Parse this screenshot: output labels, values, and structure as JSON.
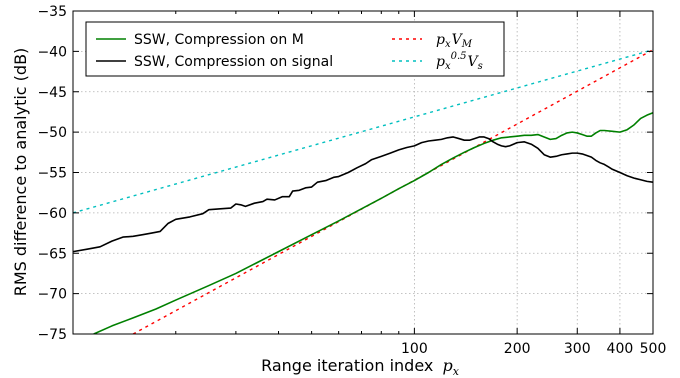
{
  "chart_data": {
    "type": "line",
    "xlabel": "Range iteration index",
    "xlabel_math": "p",
    "xlabel_math_sub": "x",
    "ylabel": "RMS difference to analytic (dB)",
    "xscale": "log",
    "xlim": [
      10,
      500
    ],
    "ylim": [
      -75,
      -35
    ],
    "grid": true,
    "legend_position": "top",
    "x_tick_labels": [
      "100",
      "200",
      "300",
      "400",
      "500"
    ],
    "x_ticks": [
      100,
      200,
      300,
      400,
      500
    ],
    "y_ticks": [
      -35,
      -40,
      -45,
      -50,
      -55,
      -60,
      -65,
      -70,
      -75
    ],
    "y_tick_labels": [
      "−35",
      "−40",
      "−45",
      "−50",
      "−55",
      "−60",
      "−65",
      "−70",
      "−75"
    ],
    "series": [
      {
        "name": "SSW, Compression on M",
        "color": "#008000",
        "style": "solid",
        "points": [
          [
            11.5,
            -75
          ],
          [
            13,
            -74
          ],
          [
            15,
            -73
          ],
          [
            17.5,
            -71.9
          ],
          [
            20,
            -70.8
          ],
          [
            25,
            -69
          ],
          [
            30,
            -67.5
          ],
          [
            40,
            -64.8
          ],
          [
            50,
            -62.7
          ],
          [
            60,
            -61
          ],
          [
            70,
            -59.5
          ],
          [
            80,
            -58.2
          ],
          [
            90,
            -57
          ],
          [
            100,
            -56
          ],
          [
            110,
            -55
          ],
          [
            120,
            -54
          ],
          [
            130,
            -53.2
          ],
          [
            140,
            -52.5
          ],
          [
            150,
            -51.9
          ],
          [
            160,
            -51.4
          ],
          [
            170,
            -51.0
          ],
          [
            180,
            -50.7
          ],
          [
            190,
            -50.6
          ],
          [
            200,
            -50.5
          ],
          [
            210,
            -50.4
          ],
          [
            220,
            -50.4
          ],
          [
            230,
            -50.3
          ],
          [
            240,
            -50.6
          ],
          [
            250,
            -50.9
          ],
          [
            260,
            -50.8
          ],
          [
            270,
            -50.4
          ],
          [
            280,
            -50.1
          ],
          [
            290,
            -50.0
          ],
          [
            300,
            -50.1
          ],
          [
            310,
            -50.3
          ],
          [
            320,
            -50.5
          ],
          [
            330,
            -50.5
          ],
          [
            340,
            -50.1
          ],
          [
            350,
            -49.8
          ],
          [
            360,
            -49.8
          ],
          [
            380,
            -49.9
          ],
          [
            400,
            -50.0
          ],
          [
            420,
            -49.7
          ],
          [
            440,
            -49.1
          ],
          [
            460,
            -48.3
          ],
          [
            480,
            -47.9
          ],
          [
            500,
            -47.6
          ]
        ]
      },
      {
        "name": "SSW, Compression on signal",
        "color": "#000000",
        "style": "solid",
        "points": [
          [
            10,
            -64.8
          ],
          [
            11,
            -64.5
          ],
          [
            12,
            -64.2
          ],
          [
            13,
            -63.5
          ],
          [
            14,
            -63.0
          ],
          [
            15,
            -62.9
          ],
          [
            16,
            -62.7
          ],
          [
            17,
            -62.5
          ],
          [
            18,
            -62.3
          ],
          [
            19,
            -61.3
          ],
          [
            20,
            -60.8
          ],
          [
            22,
            -60.5
          ],
          [
            24,
            -60.1
          ],
          [
            25,
            -59.6
          ],
          [
            27,
            -59.5
          ],
          [
            29,
            -59.4
          ],
          [
            30,
            -58.9
          ],
          [
            31,
            -59.0
          ],
          [
            32,
            -59.2
          ],
          [
            34,
            -58.8
          ],
          [
            36,
            -58.6
          ],
          [
            37,
            -58.3
          ],
          [
            39,
            -58.4
          ],
          [
            41,
            -58.0
          ],
          [
            43,
            -58.0
          ],
          [
            44,
            -57.3
          ],
          [
            46,
            -57.2
          ],
          [
            48,
            -56.9
          ],
          [
            50,
            -56.8
          ],
          [
            52,
            -56.2
          ],
          [
            55,
            -56.0
          ],
          [
            58,
            -55.6
          ],
          [
            60,
            -55.5
          ],
          [
            64,
            -55.0
          ],
          [
            68,
            -54.4
          ],
          [
            72,
            -53.9
          ],
          [
            75,
            -53.4
          ],
          [
            80,
            -53.0
          ],
          [
            85,
            -52.6
          ],
          [
            90,
            -52.2
          ],
          [
            95,
            -51.9
          ],
          [
            100,
            -51.7
          ],
          [
            105,
            -51.3
          ],
          [
            110,
            -51.1
          ],
          [
            115,
            -51.0
          ],
          [
            120,
            -50.9
          ],
          [
            125,
            -50.7
          ],
          [
            130,
            -50.6
          ],
          [
            135,
            -50.8
          ],
          [
            140,
            -51.0
          ],
          [
            145,
            -51.0
          ],
          [
            150,
            -50.8
          ],
          [
            155,
            -50.6
          ],
          [
            160,
            -50.6
          ],
          [
            165,
            -50.8
          ],
          [
            170,
            -51.2
          ],
          [
            175,
            -51.5
          ],
          [
            180,
            -51.7
          ],
          [
            185,
            -51.8
          ],
          [
            190,
            -51.7
          ],
          [
            195,
            -51.5
          ],
          [
            200,
            -51.3
          ],
          [
            210,
            -51.2
          ],
          [
            220,
            -51.5
          ],
          [
            230,
            -52.0
          ],
          [
            240,
            -52.8
          ],
          [
            250,
            -53.1
          ],
          [
            260,
            -53.0
          ],
          [
            270,
            -52.8
          ],
          [
            280,
            -52.7
          ],
          [
            290,
            -52.6
          ],
          [
            300,
            -52.6
          ],
          [
            310,
            -52.7
          ],
          [
            320,
            -52.9
          ],
          [
            330,
            -53.1
          ],
          [
            340,
            -53.5
          ],
          [
            350,
            -53.8
          ],
          [
            360,
            -54.0
          ],
          [
            370,
            -54.3
          ],
          [
            380,
            -54.6
          ],
          [
            400,
            -55.0
          ],
          [
            420,
            -55.4
          ],
          [
            440,
            -55.7
          ],
          [
            460,
            -55.9
          ],
          [
            480,
            -56.1
          ],
          [
            500,
            -56.2
          ]
        ]
      },
      {
        "name": "p_x V_M",
        "label_main": "p",
        "label_sub1": "x",
        "label_main2": "V",
        "label_sub2": "M",
        "color": "#ff0000",
        "style": "dashed",
        "points": [
          [
            15,
            -75
          ],
          [
            500,
            -39.8
          ]
        ]
      },
      {
        "name": "p_x^0.5 V_s",
        "label_main": "p",
        "label_sub1": "x",
        "label_sup": "0.5",
        "label_main2": "V",
        "label_sub2": "s",
        "color": "#00bfbf",
        "style": "dashed",
        "points": [
          [
            10,
            -60
          ],
          [
            500,
            -39.8
          ]
        ]
      }
    ]
  }
}
